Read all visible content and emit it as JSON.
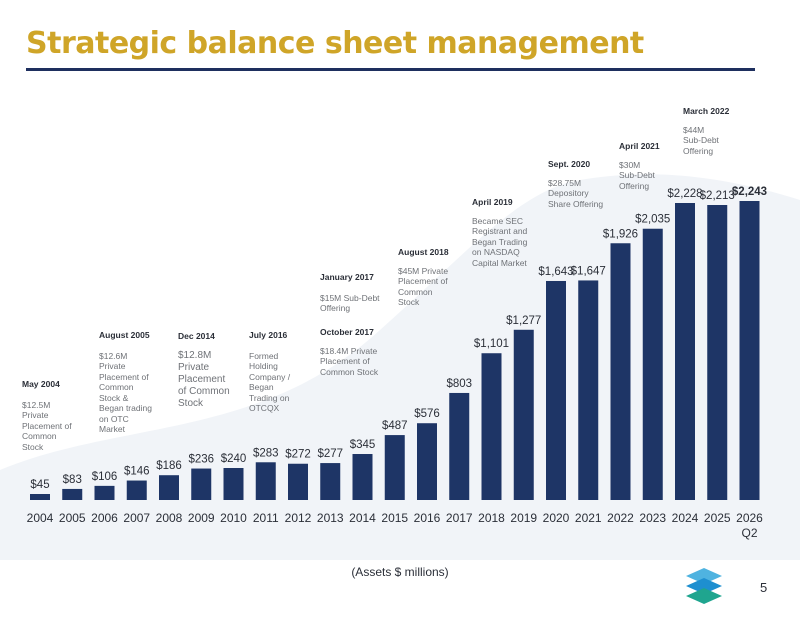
{
  "header": {
    "title": "Strategic balance sheet management"
  },
  "chart_data": {
    "type": "bar",
    "categories": [
      "2004",
      "2005",
      "2006",
      "2007",
      "2008",
      "2009",
      "2010",
      "2011",
      "2012",
      "2013",
      "2014",
      "2015",
      "2016",
      "2017",
      "2018",
      "2019",
      "2020",
      "2021",
      "2022",
      "2023",
      "2024",
      "2025",
      "2026 Q2"
    ],
    "category_lines": [
      [
        "2004"
      ],
      [
        "2005"
      ],
      [
        "2006"
      ],
      [
        "2007"
      ],
      [
        "2008"
      ],
      [
        "2009"
      ],
      [
        "2010"
      ],
      [
        "2011"
      ],
      [
        "2012"
      ],
      [
        "2013"
      ],
      [
        "2014"
      ],
      [
        "2015"
      ],
      [
        "2016"
      ],
      [
        "2017"
      ],
      [
        "2018"
      ],
      [
        "2019"
      ],
      [
        "2020"
      ],
      [
        "2021"
      ],
      [
        "2022"
      ],
      [
        "2023"
      ],
      [
        "2024"
      ],
      [
        "2025"
      ],
      [
        "2026",
        "Q2"
      ]
    ],
    "values": [
      45,
      83,
      106,
      146,
      186,
      236,
      240,
      283,
      272,
      277,
      345,
      487,
      576,
      803,
      1101,
      1277,
      1643,
      1647,
      1926,
      2035,
      2228,
      2213,
      2243
    ],
    "value_labels": [
      "$45",
      "$83",
      "$106",
      "$146",
      "$186",
      "$236",
      "$240",
      "$283",
      "$272",
      "$277",
      "$345",
      "$487",
      "$576",
      "$803",
      "$1,101",
      "$1,277",
      "$1,643",
      "$1,647",
      "$1,926",
      "$2,035",
      "$2,228",
      "$2,213",
      "$2,243"
    ],
    "ylim": [
      0,
      2243
    ],
    "xlabel": "(Assets $ millions)",
    "bar_color": "#1e3566",
    "grid": false,
    "annotations": [
      {
        "heading": "May 2004",
        "body": [
          "$12.5M",
          "Private",
          "Placement of",
          "Common",
          "Stock"
        ]
      },
      {
        "heading": "August 2005",
        "body": [
          "$12.6M",
          "Private",
          "Placement of",
          "Common",
          "Stock &",
          "Began trading",
          "on OTC",
          "Market"
        ]
      },
      {
        "heading": "Dec 2014",
        "body": [
          "$12.8M",
          "Private",
          "Placement",
          "of Common",
          "Stock"
        ]
      },
      {
        "heading": "July 2016",
        "body": [
          "Formed",
          "Holding",
          "Company /",
          "Began",
          "Trading on",
          "OTCQX"
        ]
      },
      {
        "heading": "January 2017",
        "body": [
          "$15M Sub-Debt",
          "Offering"
        ]
      },
      {
        "heading": "October 2017",
        "body": [
          "$18.4M Private",
          "Placement of",
          "Common Stock"
        ]
      },
      {
        "heading": "August 2018",
        "body": [
          "$45M Private",
          "Placement of",
          "Common",
          "Stock"
        ]
      },
      {
        "heading": "April 2019",
        "body": [
          "Became SEC",
          "Registrant and",
          "Began Trading",
          "on NASDAQ",
          "Capital Market"
        ]
      },
      {
        "heading": "Sept. 2020",
        "body": [
          "$28.75M",
          "Depository",
          "Share Offering"
        ]
      },
      {
        "heading": "April 2021",
        "body": [
          "$30M",
          "Sub-Debt",
          "Offering"
        ]
      },
      {
        "heading": "March 2022",
        "body": [
          "$44M",
          "Sub-Debt",
          "Offering"
        ]
      }
    ]
  },
  "footer": {
    "page_number": "5",
    "logo_icon": "stacked-layers-logo-icon",
    "colors": {
      "title": "#cfa528",
      "navy": "#1e2f5e",
      "teal": "#1fa58f",
      "sky": "#4fb3e0"
    }
  }
}
